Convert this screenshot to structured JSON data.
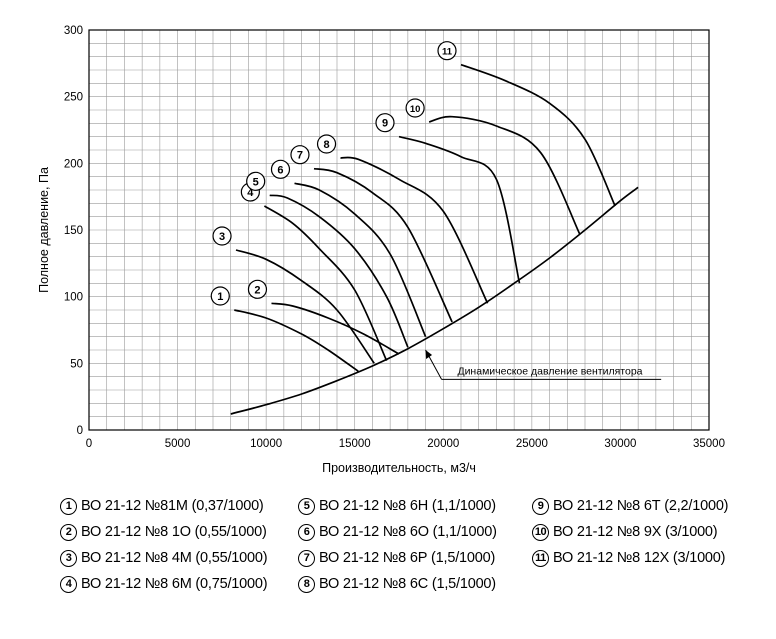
{
  "chart_data": {
    "type": "line",
    "xlabel": "Производительность, м3/ч",
    "ylabel": "Полное давление, Па",
    "xlim": [
      0,
      35000
    ],
    "ylim": [
      0,
      300
    ],
    "x_ticks": [
      0,
      5000,
      10000,
      15000,
      20000,
      25000,
      30000,
      35000
    ],
    "y_ticks": [
      0,
      50,
      100,
      150,
      200,
      250,
      300
    ],
    "grid": true,
    "series": [
      {
        "name": "ВО 21-12 №81М (0,37/1000)",
        "label": "1",
        "x": [
          8200,
          10000,
          12000,
          13500,
          15200
        ],
        "y": [
          90,
          84,
          72,
          60,
          44
        ]
      },
      {
        "name": "ВО 21-12 №8 1О (0,55/1000)",
        "label": "2",
        "x": [
          10300,
          11500,
          13500,
          15500,
          17500
        ],
        "y": [
          95,
          93,
          84,
          72,
          57
        ]
      },
      {
        "name": "ВО 21-12 №8 4М (0,55/1000)",
        "label": "3",
        "x": [
          8300,
          10000,
          12000,
          14000,
          16100
        ],
        "y": [
          135,
          128,
          112,
          90,
          50
        ]
      },
      {
        "name": "ВО 21-12 №8 6М (0,75/1000)",
        "label": "4",
        "x": [
          9900,
          11500,
          13000,
          15000,
          16800
        ],
        "y": [
          168,
          155,
          136,
          105,
          52
        ]
      },
      {
        "name": "ВО 21-12 №8 6Н (1,1/1000)",
        "label": "5",
        "x": [
          10200,
          11200,
          13000,
          15000,
          16800,
          18000
        ],
        "y": [
          176,
          174,
          160,
          136,
          100,
          62
        ]
      },
      {
        "name": "ВО 21-12 №8 6О (1,1/1000)",
        "label": "6",
        "x": [
          11600,
          13000,
          15000,
          17000,
          19000
        ],
        "y": [
          185,
          180,
          162,
          132,
          70
        ]
      },
      {
        "name": "ВО 21-12 №8 6Р (1,5/1000)",
        "label": "7",
        "x": [
          12700,
          14000,
          16000,
          18000,
          20500
        ],
        "y": [
          196,
          193,
          178,
          152,
          81
        ]
      },
      {
        "name": "ВО 21-12 №8 6С (1,5/1000)",
        "label": "8",
        "x": [
          14200,
          15200,
          17500,
          20000,
          22500
        ],
        "y": [
          204,
          203,
          188,
          164,
          95
        ]
      },
      {
        "name": "ВО 21-12 №8 6Т (2,2/1000)",
        "label": "9",
        "x": [
          17500,
          19000,
          21000,
          23000,
          24300
        ],
        "y": [
          220,
          215,
          205,
          188,
          110
        ]
      },
      {
        "name": "ВО 21-12 №8 9Х (3/1000)",
        "label": "10",
        "x": [
          19200,
          20500,
          23000,
          25500,
          27700
        ],
        "y": [
          231,
          235,
          228,
          208,
          147
        ]
      },
      {
        "name": "ВО 21-12 №8 12Х (3/1000)",
        "label": "11",
        "x": [
          21000,
          23500,
          26000,
          28000,
          29700
        ],
        "y": [
          274,
          262,
          245,
          218,
          168
        ]
      }
    ],
    "dynamic_pressure": {
      "label": "Динамическое давление вентилятора",
      "x": [
        8000,
        10000,
        12000,
        14000,
        16000,
        18000,
        20000,
        22000,
        24000,
        26000,
        28000,
        30000,
        31000
      ],
      "y": [
        12,
        19,
        27,
        37,
        48,
        61,
        76,
        92,
        110,
        129,
        150,
        172,
        182
      ]
    }
  },
  "legend": [
    {
      "num": "1",
      "text": "ВО 21-12 №81М (0,37/1000)"
    },
    {
      "num": "5",
      "text": "ВО 21-12 №8 6Н (1,1/1000)"
    },
    {
      "num": "9",
      "text": "ВО 21-12 №8 6Т (2,2/1000)"
    },
    {
      "num": "2",
      "text": "ВО 21-12 №8 1О (0,55/1000)"
    },
    {
      "num": "6",
      "text": "ВО 21-12 №8 6О (1,1/1000)"
    },
    {
      "num": "10",
      "text": "ВО 21-12 №8 9Х (3/1000)"
    },
    {
      "num": "3",
      "text": "ВО 21-12 №8 4М (0,55/1000)"
    },
    {
      "num": "7",
      "text": "ВО 21-12 №8 6Р (1,5/1000)"
    },
    {
      "num": "11",
      "text": "ВО 21-12 №8 12Х (3/1000)"
    },
    {
      "num": "4",
      "text": "ВО 21-12 №8 6М (0,75/1000)"
    },
    {
      "num": "8",
      "text": "ВО 21-12 №8 6С (1,5/1000)"
    }
  ]
}
